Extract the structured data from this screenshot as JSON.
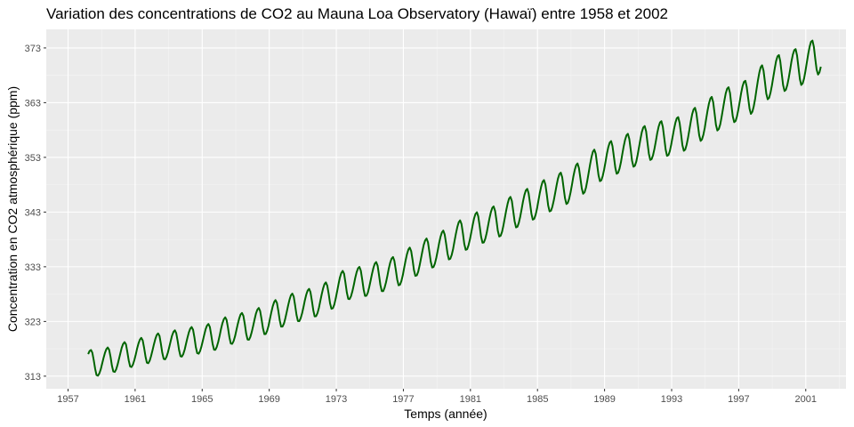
{
  "chart_data": {
    "type": "line",
    "title": "Variation des concentrations de CO2 au Mauna Loa Observatory (Hawaï) entre 1958 et 2002",
    "xlabel": "Temps (année)",
    "ylabel": "Concentration en CO2 atmosphérique (ppm)",
    "xlim": [
      1955.7,
      2003.4
    ],
    "ylim": [
      310.7,
      376.4
    ],
    "x_ticks": [
      1957,
      1961,
      1965,
      1969,
      1973,
      1977,
      1981,
      1985,
      1989,
      1993,
      1997,
      2001
    ],
    "y_ticks": [
      313,
      323,
      333,
      343,
      353,
      363,
      373
    ],
    "grid": true,
    "legend": "none",
    "colors": {
      "line": "#006400",
      "panel": "#ebebeb",
      "grid_major": "#ffffff",
      "grid_minor": "#f5f5f5"
    },
    "series": [
      {
        "x": [
          1958.2,
          1958.5,
          1959.5,
          1960.5,
          1961.5,
          1962.5,
          1963.5,
          1964.5,
          1965.5,
          1966.5,
          1967.5,
          1968.5,
          1969.5,
          1970.5,
          1971.5,
          1972.5,
          1973.5,
          1974.5,
          1975.5,
          1976.5,
          1977.5,
          1978.5,
          1979.5,
          1980.5,
          1981.5,
          1982.5,
          1983.5,
          1984.5,
          1985.5,
          1986.5,
          1987.5,
          1988.5,
          1989.5,
          1990.5,
          1991.5,
          1992.5,
          1993.5,
          1994.5,
          1995.5,
          1996.5,
          1997.5,
          1998.5,
          1999.5,
          2000.5,
          2001.5,
          2001.9
        ],
        "y": [
          315.5,
          315.3,
          315.9,
          316.9,
          317.6,
          318.4,
          318.9,
          319.5,
          320.0,
          321.3,
          322.0,
          322.9,
          324.4,
          325.5,
          326.3,
          327.5,
          329.7,
          330.2,
          331.1,
          332.0,
          333.8,
          335.4,
          336.8,
          338.7,
          340.1,
          341.1,
          342.9,
          344.3,
          345.9,
          347.2,
          348.9,
          351.5,
          352.9,
          354.2,
          355.6,
          356.4,
          357.1,
          358.9,
          360.9,
          362.6,
          363.7,
          366.7,
          368.4,
          369.4,
          371.0,
          372.2
        ]
      }
    ],
    "seasonal_cycle": {
      "amplitude_ppm": [
        2.4,
        3.6
      ],
      "peak_month": 5,
      "trough_month": 9.5
    }
  }
}
